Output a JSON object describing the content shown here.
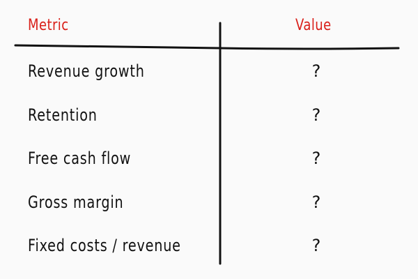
{
  "table": {
    "headers": [
      "Metric",
      "Value"
    ],
    "rows": [
      {
        "metric": "Revenue growth",
        "value": "?"
      },
      {
        "metric": "Retention",
        "value": "?"
      },
      {
        "metric": "Free cash flow",
        "value": "?"
      },
      {
        "metric": "Gross margin",
        "value": "?"
      },
      {
        "metric": "Fixed costs / revenue",
        "value": "?"
      }
    ]
  },
  "colors": {
    "header": "#d9201a",
    "text": "#111111",
    "background": "#fafafa"
  }
}
